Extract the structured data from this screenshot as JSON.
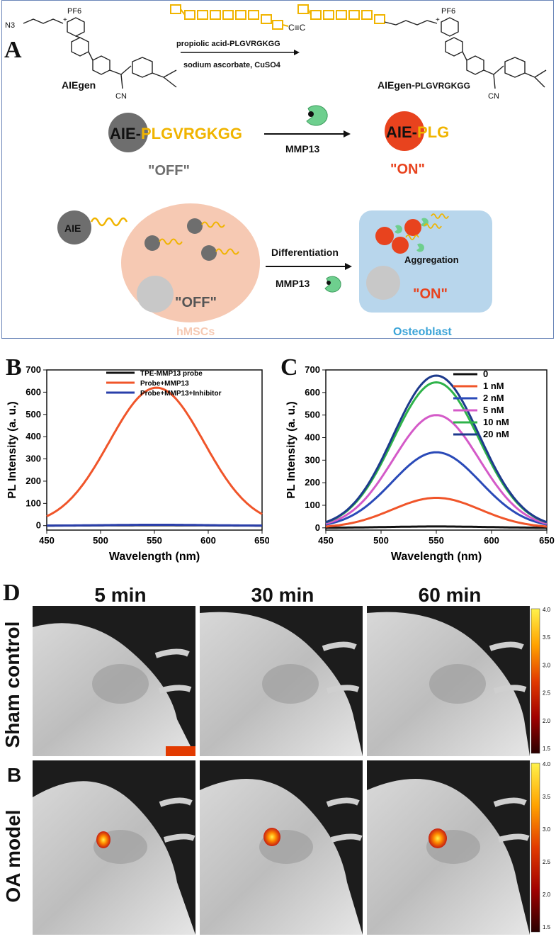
{
  "panels": {
    "a": "A",
    "b": "B",
    "c": "C",
    "d": "D"
  },
  "scheme": {
    "azide": "N3",
    "counterion": "PF6",
    "charge": "+",
    "alkyne": "C≡C",
    "nitrile": "CN",
    "reagent1": "propiolic acid-PLGVRGKGG",
    "reagent2": "sodium ascorbate, CuSO4",
    "aiegen_label": "AIEgen",
    "product_label_prefix": "AIEgen-",
    "product_label_suffix": "PLGVRGKGG",
    "probe_prefix": "AIE-",
    "probe_peptide": "PLGVRGKGG",
    "enzyme": "MMP13",
    "cleaved_prefix": "AIE-",
    "cleaved_peptide": "PLG",
    "off_label": "\"OFF\"",
    "on_label": "\"ON\"",
    "aie_ball": "AIE",
    "differentiation": "Differentiation",
    "enzyme2": "MMP13",
    "aggregation": "Aggregation",
    "cell_off": "\"OFF\"",
    "cell_on": "\"ON\"",
    "hmscs": "hMSCs",
    "osteoblast": "Osteoblast",
    "colors": {
      "yellow": "#f0b400",
      "gray": "#6e6e6e",
      "red": "#e8431e",
      "hmsc": "#f6c9b3",
      "osteo": "#b8d6ec",
      "enzyme": "#6ecf8e"
    }
  },
  "chart_data": [
    {
      "type": "line",
      "panel": "B",
      "xlabel": "Wavelength (nm)",
      "ylabel": "PL Intensity (a. u.)",
      "xlim": [
        450,
        650
      ],
      "ylim": [
        -20,
        700
      ],
      "xticks": [
        450,
        500,
        550,
        600,
        650
      ],
      "yticks": [
        0,
        100,
        200,
        300,
        400,
        500,
        600,
        700
      ],
      "legend_position": "top-right",
      "series": [
        {
          "name": "TPE-MMP13 probe",
          "color": "#111111",
          "peak": 550,
          "amp": 2,
          "sigma": 45,
          "base": 0
        },
        {
          "name": "Probe+MMP13",
          "color": "#f0552a",
          "peak": 552,
          "amp": 620,
          "sigma": 44,
          "base": 0
        },
        {
          "name": "Probe+MMP13+Inhibitor",
          "color": "#2a3faa",
          "peak": 552,
          "amp": 4,
          "sigma": 44,
          "base": 0
        }
      ]
    },
    {
      "type": "line",
      "panel": "C",
      "xlabel": "Wavelength (nm)",
      "ylabel": "PL Intensity (a. u.)",
      "xlim": [
        450,
        650
      ],
      "ylim": [
        -10,
        700
      ],
      "xticks": [
        450,
        500,
        550,
        600,
        650
      ],
      "yticks": [
        0,
        100,
        200,
        300,
        400,
        500,
        600,
        700
      ],
      "legend_position": "top-right",
      "series": [
        {
          "name": "0",
          "color": "#111111",
          "peak": 550,
          "amp": 6,
          "sigma": 45,
          "base": 0
        },
        {
          "name": "1 nM",
          "color": "#f0552a",
          "peak": 550,
          "amp": 133,
          "sigma": 40,
          "base": 0
        },
        {
          "name": "2 nM",
          "color": "#2a4ab8",
          "peak": 550,
          "amp": 335,
          "sigma": 40,
          "base": 0
        },
        {
          "name": "5 nM",
          "color": "#d45ac8",
          "peak": 550,
          "amp": 500,
          "sigma": 39,
          "base": 0
        },
        {
          "name": "10 nM",
          "color": "#2fb34a",
          "peak": 550,
          "amp": 645,
          "sigma": 39,
          "base": 0
        },
        {
          "name": "20 nM",
          "color": "#1d3a8c",
          "peak": 550,
          "amp": 675,
          "sigma": 39,
          "base": 0
        }
      ]
    }
  ],
  "imaging": {
    "times": [
      "5 min",
      "30 min",
      "60 min"
    ],
    "rows": [
      "Sham control",
      "OA model"
    ],
    "row_b_marker": "B",
    "colorbar_ticks": [
      "4.0",
      "3.5",
      "3.0",
      "2.5",
      "2.0",
      "1.5"
    ]
  }
}
